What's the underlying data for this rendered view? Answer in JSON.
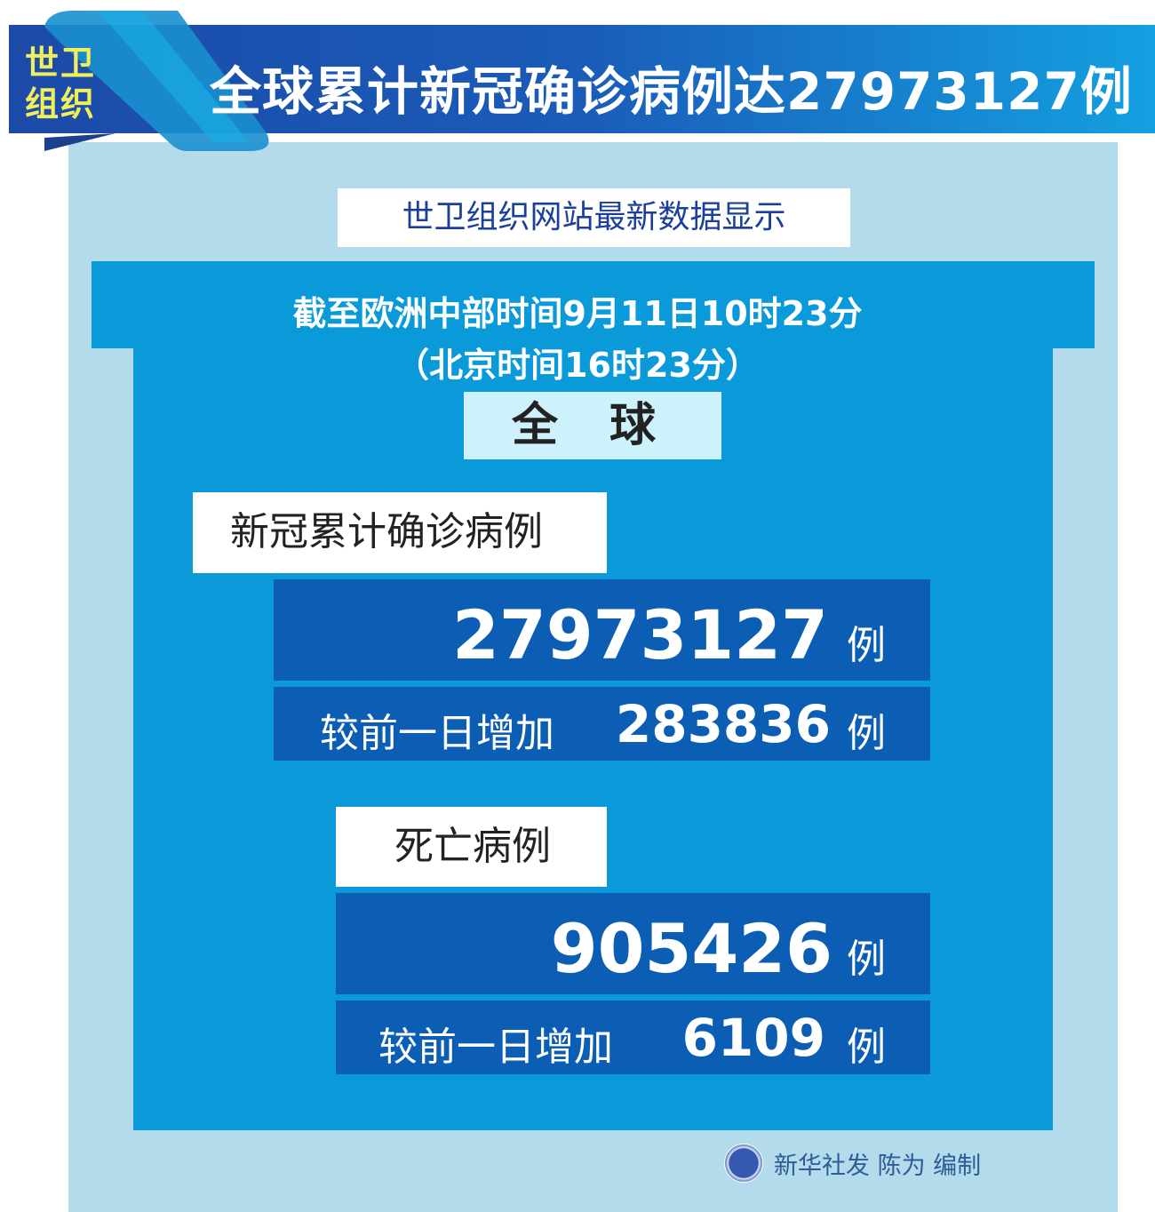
{
  "header": {
    "badge_line1": "世卫",
    "badge_line2": "组织",
    "title": "全球累计新冠确诊病例达27973127例"
  },
  "subtitle": "世卫组织网站最新数据显示",
  "timestamp": {
    "cet": "截至欧洲中部时间9月11日10时23分",
    "beijing": "（北京时间16时23分）"
  },
  "scope": "全 球",
  "confirmed": {
    "label": "新冠累计确诊病例",
    "total": "27973127",
    "unit": "例",
    "increase_label": "较前一日增加",
    "increase": "283836"
  },
  "deaths": {
    "label": "死亡病例",
    "total": "905426",
    "unit": "例",
    "increase_label": "较前一日增加",
    "increase": "6109"
  },
  "footer": {
    "credit": "新华社发 陈为 编制",
    "logo_icon": "xinhua-logo"
  },
  "colors": {
    "header": "#1c4aa8",
    "panel": "#0a9ad9",
    "dark_box": "#0b5eb3",
    "background": "#b3dbec",
    "badge_text": "#f1ee5c"
  }
}
